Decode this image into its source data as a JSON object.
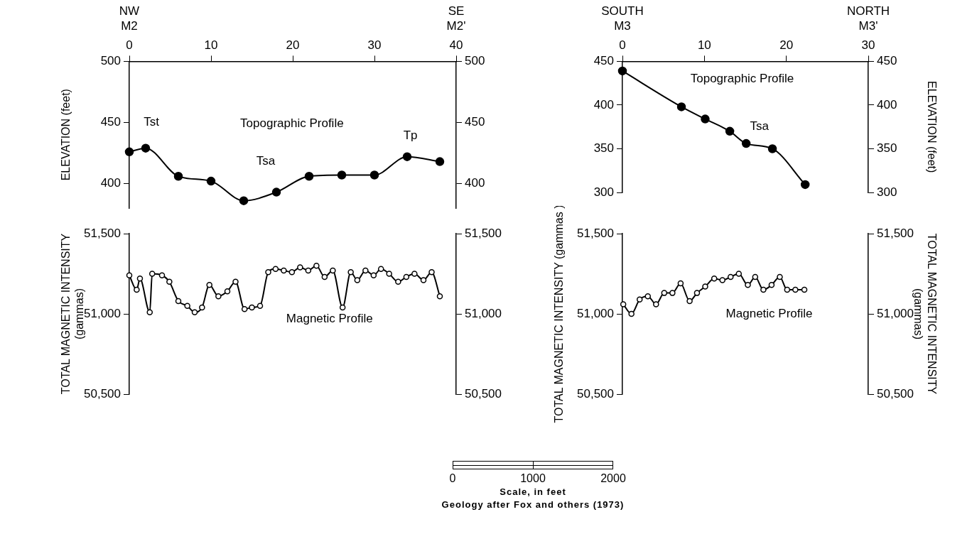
{
  "chart_data": [
    {
      "type": "line",
      "xlim": [
        0,
        40
      ],
      "xticks": [
        0,
        10,
        20,
        30,
        40
      ],
      "ylabel": "ELEVATION (feet)",
      "ylim": [
        380,
        500
      ],
      "yticks": [
        400,
        450,
        500
      ],
      "y2lim": [
        380,
        500
      ],
      "y2ticks": [
        400,
        450,
        500
      ],
      "grid": false,
      "legend": false,
      "marker": "circle",
      "series": [
        {
          "color": "#000000",
          "x": [
            0,
            2,
            6,
            10,
            14,
            18,
            22,
            26,
            30,
            34,
            38
          ],
          "values": [
            426,
            429,
            406,
            402,
            386,
            393,
            406,
            407,
            407,
            422,
            418
          ]
        }
      ],
      "annotations": [
        "NW",
        "M2",
        "SE",
        "M2'",
        "Tst",
        "Topographic Profile",
        "Tsa",
        "Tp"
      ]
    },
    {
      "type": "line",
      "xlim": [
        0,
        40
      ],
      "tick_labels": "y",
      "ylabel": "TOTAL MAGNETIC INTENSITY\n(gammas)",
      "ylim": [
        50500,
        51500
      ],
      "yticks": [
        {
          "value": 50500,
          "label": "50,500"
        },
        {
          "value": 51000,
          "label": "51,000"
        },
        {
          "value": 51500,
          "label": "51,500"
        }
      ],
      "y2lim": [
        50500,
        51500
      ],
      "y2ticks": [
        {
          "value": 50500,
          "label": "50,500"
        },
        {
          "value": 51000,
          "label": "51,000"
        },
        {
          "value": 51500,
          "label": "51,500"
        }
      ],
      "grid": false,
      "legend": false,
      "marker": "circle",
      "series": [
        {
          "color": "#000000",
          "x": [
            0,
            0.9,
            1.3,
            2.5,
            2.8,
            4,
            4.9,
            6,
            7.1,
            8,
            8.9,
            9.8,
            10.9,
            12,
            13,
            14.1,
            15,
            16,
            17,
            17.9,
            18.9,
            19.9,
            20.9,
            21.9,
            22.9,
            23.9,
            24.9,
            26.1,
            27.1,
            27.9,
            28.9,
            29.9,
            30.8,
            31.8,
            32.9,
            33.9,
            34.9,
            36,
            37,
            38
          ],
          "values": [
            51240,
            51150,
            51220,
            51010,
            51250,
            51240,
            51200,
            51080,
            51050,
            51010,
            51040,
            51180,
            51110,
            51140,
            51200,
            51030,
            51040,
            51050,
            51260,
            51280,
            51270,
            51260,
            51290,
            51270,
            51300,
            51230,
            51270,
            51040,
            51260,
            51210,
            51270,
            51240,
            51280,
            51250,
            51200,
            51230,
            51250,
            51210,
            51260,
            51110
          ]
        }
      ],
      "annotations": [
        "Magnetic Profile"
      ]
    },
    {
      "type": "line",
      "xlim": [
        0,
        30
      ],
      "xticks": [
        0,
        10,
        20,
        30
      ],
      "ylim": [
        300,
        450
      ],
      "yticks": [
        300,
        350,
        400,
        450
      ],
      "y2label": "ELEVATION (feet)",
      "y2lim": [
        300,
        450
      ],
      "y2ticks": [
        300,
        350,
        400,
        450
      ],
      "grid": false,
      "legend": false,
      "marker": "circle",
      "series": [
        {
          "color": "#000000",
          "x": [
            0,
            7.2,
            10.1,
            13.1,
            15.1,
            18.3,
            22.3
          ],
          "values": [
            439,
            398,
            384,
            370,
            356,
            350,
            309
          ]
        }
      ],
      "annotations": [
        "SOUTH",
        "M3",
        "NORTH",
        "M3'",
        "Topographic Profile",
        "Tsa"
      ]
    },
    {
      "type": "line",
      "xlim": [
        0,
        30
      ],
      "tick_labels": "y",
      "ylabel": "TOTAL MAGNETIC INTENSITY (gammas )",
      "ylim": [
        50500,
        51500
      ],
      "yticks": [
        {
          "value": 50500,
          "label": "50,500"
        },
        {
          "value": 51000,
          "label": "51,000"
        },
        {
          "value": 51500,
          "label": "51,500"
        }
      ],
      "y2label": "TOTAL MAGNETIC INTENSITY\n(gammas)",
      "y2lim": [
        50500,
        51500
      ],
      "y2ticks": [
        {
          "value": 50500,
          "label": "50,500"
        },
        {
          "value": 51000,
          "label": "51,000"
        },
        {
          "value": 51500,
          "label": "51,500"
        }
      ],
      "grid": false,
      "legend": false,
      "marker": "circle",
      "series": [
        {
          "color": "#000000",
          "x": [
            0.1,
            1.1,
            2.1,
            3.1,
            4.1,
            5.1,
            6.1,
            7.1,
            8.2,
            9.1,
            10.1,
            11.2,
            12.2,
            13.2,
            14.2,
            15.3,
            16.2,
            17.2,
            18.2,
            19.2,
            20.1,
            21.1,
            22.2
          ],
          "values": [
            51060,
            51000,
            51090,
            51110,
            51060,
            51130,
            51130,
            51190,
            51080,
            51130,
            51170,
            51220,
            51210,
            51230,
            51250,
            51180,
            51230,
            51150,
            51180,
            51230,
            51150,
            51150,
            51150
          ]
        }
      ],
      "annotations": [
        "Magnetic Profile"
      ]
    },
    {
      "type": "other",
      "xlabel": "Scale, in feet",
      "annotations": [
        "0",
        "1000",
        "2000",
        "Geology after Fox and others (1973)"
      ]
    }
  ]
}
